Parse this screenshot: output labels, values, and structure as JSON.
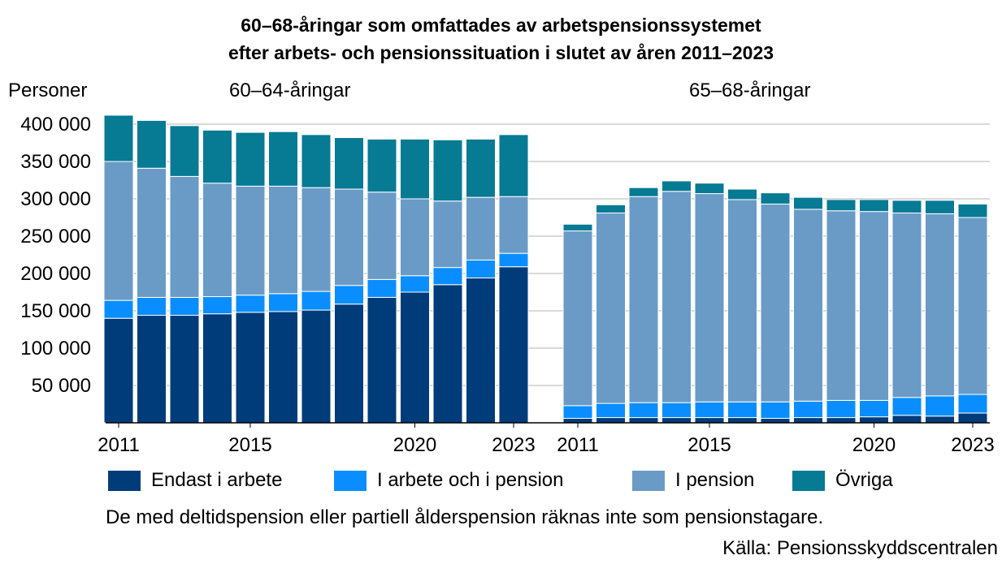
{
  "title_line1": "60–68-åringar som omfattades av arbetspensionssystemet",
  "title_line2": "efter arbets- och pensionssituation i slutet av åren 2011–2023",
  "unit_label": "Personer",
  "note": "De med deltidspension eller partiell ålderspension räknas inte som pensionstagare.",
  "source": "Källa: Pensionsskyddscentralen",
  "legend": [
    {
      "key": "only_work",
      "label": "Endast i arbete",
      "color": "#003b7a"
    },
    {
      "key": "work_and_pension",
      "label": "I arbete och i pension",
      "color": "#0a8eff"
    },
    {
      "key": "pension",
      "label": "I pension",
      "color": "#6a9bc7"
    },
    {
      "key": "other",
      "label": "Övriga",
      "color": "#077a94"
    }
  ],
  "chart_data": {
    "type": "bar",
    "stacked": true,
    "ylim": [
      0,
      400000
    ],
    "yticks": [
      {
        "value": 50000,
        "label": "50 000"
      },
      {
        "value": 100000,
        "label": "100 000"
      },
      {
        "value": 150000,
        "label": "150 000"
      },
      {
        "value": 200000,
        "label": "200 000"
      },
      {
        "value": 250000,
        "label": "250 000"
      },
      {
        "value": 300000,
        "label": "300 000"
      },
      {
        "value": 350000,
        "label": "350 000"
      },
      {
        "value": 400000,
        "label": "400 000"
      }
    ],
    "grid": true,
    "panels": [
      {
        "name": "60–64-åringar",
        "categories": [
          2011,
          2012,
          2013,
          2014,
          2015,
          2016,
          2017,
          2018,
          2019,
          2020,
          2021,
          2022,
          2023
        ],
        "xticks": [
          "2011",
          "2015",
          "2020",
          "2023"
        ],
        "series": [
          {
            "key": "only_work",
            "values": [
              140000,
              144000,
              144000,
              146000,
              148000,
              149000,
              151000,
              159000,
              168000,
              175000,
              185000,
              194000,
              209000
            ]
          },
          {
            "key": "work_and_pension",
            "values": [
              24000,
              24000,
              24000,
              23000,
              23000,
              24000,
              25000,
              25000,
              24000,
              22000,
              23000,
              24000,
              18000
            ]
          },
          {
            "key": "pension",
            "values": [
              186000,
              173000,
              162000,
              152000,
              146000,
              144000,
              139000,
              129000,
              117000,
              103000,
              89000,
              84000,
              76000
            ]
          },
          {
            "key": "other",
            "values": [
              62000,
              64000,
              68000,
              71000,
              72000,
              73000,
              71000,
              69000,
              71000,
              80000,
              82000,
              78000,
              83000
            ]
          }
        ]
      },
      {
        "name": "65–68-åringar",
        "categories": [
          2011,
          2012,
          2013,
          2014,
          2015,
          2016,
          2017,
          2018,
          2019,
          2020,
          2021,
          2022,
          2023
        ],
        "xticks": [
          "2011",
          "2015",
          "2020",
          "2023"
        ],
        "series": [
          {
            "key": "only_work",
            "values": [
              6000,
              7000,
              7000,
              7000,
              7000,
              7000,
              6000,
              7000,
              7000,
              8000,
              10000,
              9000,
              13000
            ]
          },
          {
            "key": "work_and_pension",
            "values": [
              17000,
              19000,
              20000,
              20000,
              21000,
              21000,
              22000,
              22000,
              23000,
              22000,
              24000,
              27000,
              25000
            ]
          },
          {
            "key": "pension",
            "values": [
              234000,
              255000,
              276000,
              283000,
              279000,
              271000,
              265000,
              257000,
              254000,
              253000,
              247000,
              244000,
              237000
            ]
          },
          {
            "key": "other",
            "values": [
              9000,
              11000,
              12000,
              14000,
              14000,
              14000,
              15000,
              16000,
              15000,
              16000,
              17000,
              18000,
              18000
            ]
          }
        ]
      }
    ]
  }
}
